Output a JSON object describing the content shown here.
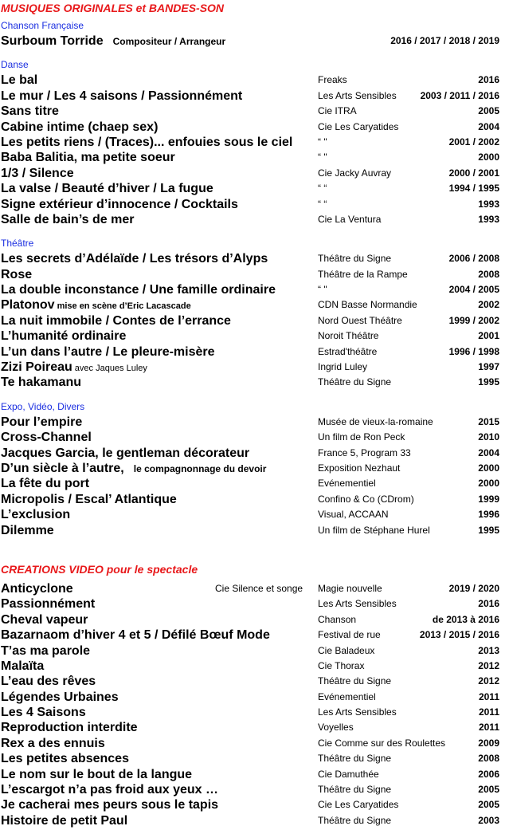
{
  "sections": [
    {
      "heading": "MUSIQUES ORIGINALES et BANDES-SON",
      "groups": [
        {
          "label": "Chanson Française",
          "rows": [
            {
              "title": "Surboum Torride",
              "note": "Compositeur / Arrangeur",
              "years": "2016 / 2017 / 2018 / 2019"
            }
          ]
        },
        {
          "label": "Danse",
          "rows": [
            {
              "title": "Le bal",
              "venue": "Freaks",
              "years": "2016"
            },
            {
              "title": "Le mur  / Les 4 saisons / Passionnément",
              "venue": "Les Arts Sensibles",
              "years": "2003 / 2011 / 2016"
            },
            {
              "title": "Sans titre",
              "venue": "Cie ITRA",
              "years": "2005"
            },
            {
              "title": "Cabine intime (chaep sex)",
              "venue": "Cie Les Caryatides",
              "years": "2004"
            },
            {
              "title": "Les petits riens  / (Traces)... enfouies sous le ciel",
              "venue": "“           \"",
              "years": "2001 / 2002"
            },
            {
              "title": "Baba Balitia, ma petite soeur",
              "venue": "“           \"",
              "years": "2000"
            },
            {
              "title": "1/3 / Silence",
              "venue": "Cie Jacky Auvray",
              "years": "2000 / 2001"
            },
            {
              "title": "La valse / Beauté d’hiver / La fugue",
              "venue": "“            “",
              "years": "1994 / 1995"
            },
            {
              "title": "Signe extérieur d’innocence / Cocktails",
              "venue": "“            “",
              "years": "1993"
            },
            {
              "title": "Salle de bain’s de mer",
              "venue": "Cie La Ventura",
              "years": "1993"
            }
          ]
        },
        {
          "label": "Théâtre",
          "rows": [
            {
              "title": "Les secrets d’Adélaïde / Les trésors d’Alyps",
              "venue": "Théâtre du Signe",
              "years": "2006 / 2008"
            },
            {
              "title": "Rose",
              "venue": "Théâtre de la Rampe",
              "years": "2008"
            },
            {
              "title": "La double inconstance / Une famille ordinaire",
              "venue": "“           \"",
              "years": "2004 / 2005"
            },
            {
              "title": "Platonov",
              "note": "mise en scène d’Eric Lacascade",
              "venue": "CDN Basse Normandie",
              "years": "2002"
            },
            {
              "title": "La nuit immobile / Contes de l’errance",
              "venue": "Nord Ouest Théâtre",
              "years": "1999 / 2002"
            },
            {
              "title": "L’humanité ordinaire",
              "venue": "Noroit Théâtre",
              "years": "2001"
            },
            {
              "title": "L’un dans l’autre / Le pleure-misère",
              "venue": "Estrad'théâtre",
              "years": "1996 / 1998"
            },
            {
              "title": "Zizi Poireau",
              "note": "avec Jaques Luley",
              "venue": "Ingrid Luley",
              "years": "1997"
            },
            {
              "title": "Te hakamanu",
              "venue": "Théâtre du Signe",
              "years": "1995"
            }
          ]
        },
        {
          "label": "Expo, Vidéo, Divers",
          "rows": [
            {
              "title": "Pour l’empire",
              "venue": "Musée de vieux-la-romaine",
              "years": "2015"
            },
            {
              "title": "Cross-Channel",
              "venue": "Un film de Ron Peck",
              "years": "2010"
            },
            {
              "title": "Jacques Garcia, le gentleman décorateur",
              "venue": "France 5, Program 33",
              "years": "2004"
            },
            {
              "title": "D’un siècle à l’autre,",
              "note": "le compagnonnage du devoir",
              "venue": "Exposition Nezhaut",
              "years": "2000"
            },
            {
              "title": "La fête du port",
              "venue": "Evénementiel",
              "years": "2000"
            },
            {
              "title": "Micropolis / Escal’ Atlantique",
              "venue": "Confino & Co  (CDrom)",
              "years": "1999"
            },
            {
              "title": "L’exclusion",
              "venue": "Visual, ACCAAN",
              "years": "1996"
            },
            {
              "title": "Dilemme",
              "venue": "Un film de Stéphane Hurel",
              "years": "1995"
            }
          ]
        }
      ]
    },
    {
      "heading": "CREATIONS VIDEO pour le spectacle",
      "groups": [
        {
          "rows": [
            {
              "title": "Anticyclone",
              "note": "Cie Silence et songe",
              "venue": "Magie nouvelle",
              "years": "2019 / 2020"
            },
            {
              "title": "Passionnément",
              "venue": "Les Arts Sensibles",
              "years": "2016"
            },
            {
              "title": "Cheval vapeur",
              "venue": "Chanson",
              "years": "de 2013 à 2016"
            },
            {
              "title": "Bazarnaom d’hiver 4 et 5 / Défilé Bœuf Mode",
              "venue": "Festival de rue",
              "years": "2013 / 2015 / 2016"
            },
            {
              "title": "T’as ma parole",
              "venue": "Cie Baladeux",
              "years": "2013"
            },
            {
              "title": "Malaïta",
              "venue": "Cie Thorax",
              "years": "2012"
            },
            {
              "title": "L’eau des rêves",
              "venue": "Théâtre du Signe",
              "years": "2012"
            },
            {
              "title": "Légendes Urbaines",
              "venue": "Evénementiel",
              "years": "2011"
            },
            {
              "title": "Les 4 Saisons",
              "venue": "Les Arts Sensibles",
              "years": "2011"
            },
            {
              "title": "Reproduction interdite",
              "venue": "Voyelles",
              "years": "2011"
            },
            {
              "title": "Rex a des ennuis",
              "venue": "Cie Comme sur des Roulettes",
              "years": "2009"
            },
            {
              "title": "Les petites absences",
              "venue": "Théâtre du Signe",
              "years": "2008"
            },
            {
              "title": "Le nom sur le bout de la langue",
              "venue": "Cie Damuthée",
              "years": "2006"
            },
            {
              "title": "L’escargot n’a pas froid aux yeux …",
              "venue": "Théâtre du Signe",
              "years": "2005"
            },
            {
              "title": "Je cacherai mes peurs sous le tapis",
              "venue": "Cie Les Caryatides",
              "years": "2005"
            },
            {
              "title": "Histoire de petit Paul",
              "venue": "Théâtre du Signe",
              "years": "2003"
            }
          ]
        }
      ]
    }
  ]
}
